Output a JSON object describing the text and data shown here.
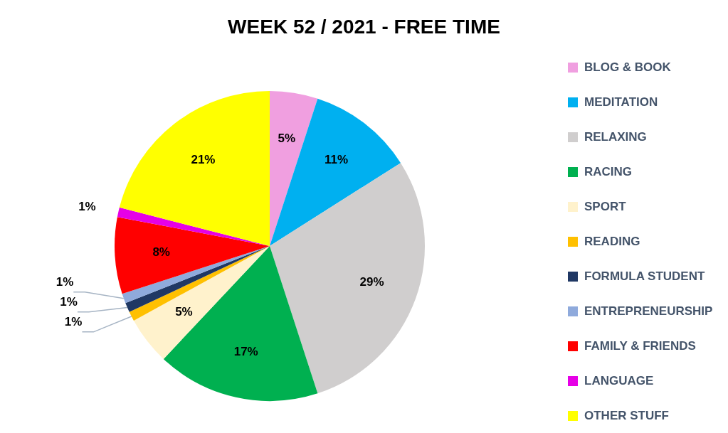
{
  "chart_data": {
    "type": "pie",
    "title": "WEEK 52 / 2021 - FREE TIME",
    "categories": [
      "BLOG & BOOK",
      "MEDITATION",
      "RELAXING",
      "RACING",
      "SPORT",
      "READING",
      "FORMULA STUDENT",
      "ENTREPRENEURSHIP",
      "FAMILY & FRIENDS",
      "LANGUAGE",
      "OTHER STUFF"
    ],
    "values": [
      5,
      11,
      29,
      17,
      5,
      1,
      1,
      1,
      8,
      1,
      21
    ],
    "value_labels": [
      "5%",
      "11%",
      "29%",
      "17%",
      "5%",
      "1%",
      "1%",
      "1%",
      "8%",
      "1%",
      "21%"
    ],
    "colors": [
      "#f09fe0",
      "#00b0f0",
      "#d0cece",
      "#00b050",
      "#fff2cc",
      "#ffc000",
      "#203864",
      "#8faadc",
      "#ff0000",
      "#e600e6",
      "#ffff00"
    ],
    "data_labels": true,
    "legend": "right"
  }
}
